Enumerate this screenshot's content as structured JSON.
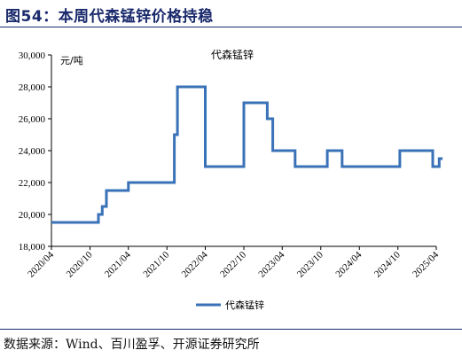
{
  "figure": {
    "title": "图54：本周代森锰锌价格持稳",
    "source": "数据来源：Wind、百川盈孚、开源证券研究所"
  },
  "chart_data": {
    "type": "line",
    "title": "代森锰锌",
    "unit_label": "元/吨",
    "ylim": [
      18000,
      30000
    ],
    "yticks": [
      18000,
      20000,
      22000,
      24000,
      26000,
      28000,
      30000
    ],
    "ytick_labels": [
      "18,000",
      "20,000",
      "22,000",
      "24,000",
      "26,000",
      "28,000",
      "30,000"
    ],
    "xticks": [
      "2020-04",
      "2020-10",
      "2021-04",
      "2021-10",
      "2022-04",
      "2022-10",
      "2023-04",
      "2023-10",
      "2024-04",
      "2024-10",
      "2025-04"
    ],
    "xtick_labels": [
      "2020/04",
      "2020/10",
      "2021/04",
      "2021/10",
      "2022/04",
      "2022/10",
      "2023/04",
      "2023/10",
      "2024/04",
      "2024/10",
      "2025/04"
    ],
    "xlim": [
      "2020-04",
      "2025-04"
    ],
    "legend": "bottom-center",
    "grid": false,
    "color": "#3a72b8",
    "series": [
      {
        "name": "代森锰锌",
        "step": true,
        "points": [
          [
            "2020-04-01",
            19500
          ],
          [
            "2020-11-10",
            19500
          ],
          [
            "2020-11-10",
            20000
          ],
          [
            "2020-11-28",
            20000
          ],
          [
            "2020-11-28",
            20500
          ],
          [
            "2020-12-18",
            20500
          ],
          [
            "2020-12-18",
            21500
          ],
          [
            "2021-04-01",
            21500
          ],
          [
            "2021-04-01",
            22000
          ],
          [
            "2021-11-05",
            22000
          ],
          [
            "2021-11-05",
            25000
          ],
          [
            "2021-11-20",
            25000
          ],
          [
            "2021-11-20",
            28000
          ],
          [
            "2022-04-01",
            28000
          ],
          [
            "2022-04-01",
            23000
          ],
          [
            "2022-10-01",
            23000
          ],
          [
            "2022-10-01",
            27000
          ],
          [
            "2023-01-20",
            27000
          ],
          [
            "2023-01-20",
            26000
          ],
          [
            "2023-02-15",
            26000
          ],
          [
            "2023-02-15",
            24000
          ],
          [
            "2023-06-01",
            24000
          ],
          [
            "2023-06-01",
            23000
          ],
          [
            "2023-11-01",
            23000
          ],
          [
            "2023-11-01",
            24000
          ],
          [
            "2024-01-10",
            24000
          ],
          [
            "2024-01-10",
            23000
          ],
          [
            "2024-10-10",
            23000
          ],
          [
            "2024-10-10",
            24000
          ],
          [
            "2025-03-15",
            24000
          ],
          [
            "2025-03-15",
            23000
          ],
          [
            "2025-04-15",
            23000
          ],
          [
            "2025-04-15",
            23500
          ],
          [
            "2025-05-01",
            23500
          ]
        ]
      }
    ]
  }
}
